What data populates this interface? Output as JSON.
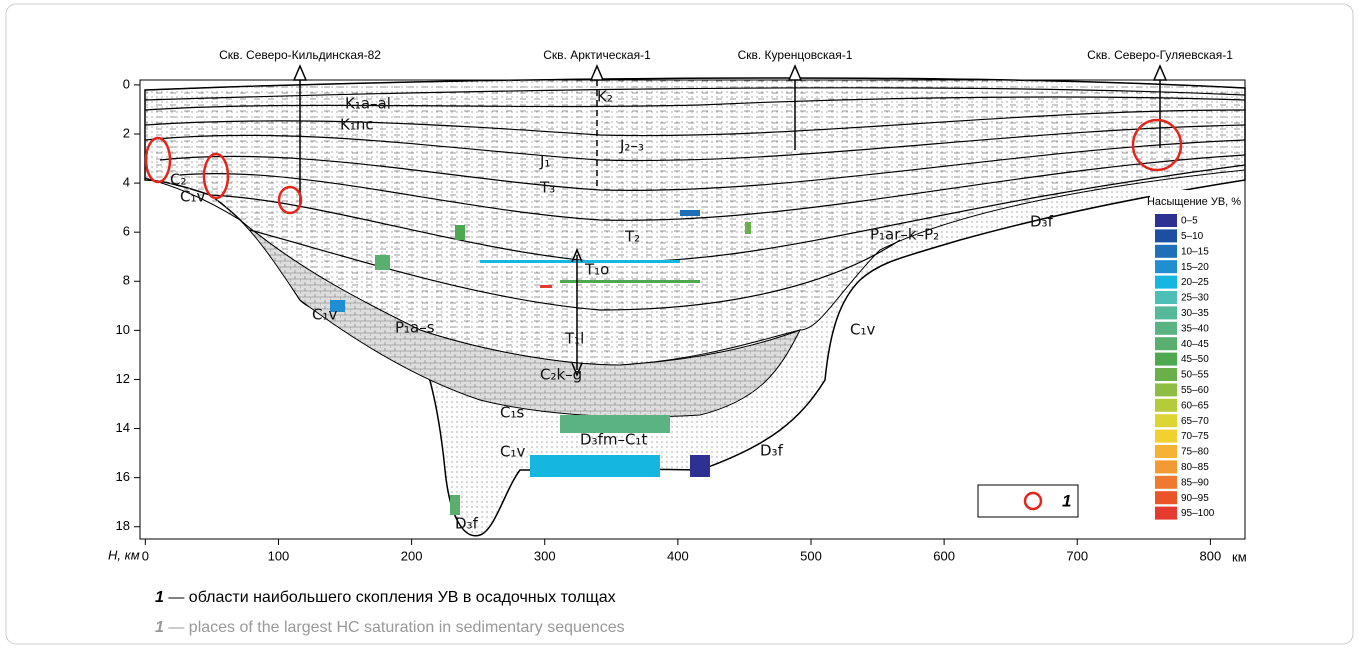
{
  "figure": {
    "wells": [
      "Скв. Северо-Кильдинская-82",
      "Скв. Арктическая-1",
      "Скв. Куренцовская-1",
      "Скв. Северо-Гуляевская-1"
    ],
    "y_axis_label": "H, км",
    "x_axis_label": "км",
    "xlim": [
      -4,
      826
    ],
    "ylim": [
      -0.2,
      18.5
    ],
    "xticks": [
      0,
      100,
      200,
      300,
      400,
      500,
      600,
      700,
      800
    ],
    "yticks": [
      0,
      2,
      4,
      6,
      8,
      10,
      12,
      14,
      16,
      18
    ],
    "formations": [
      "K₁a–al",
      "K₁nc",
      "K₂",
      "J₂–₃",
      "J₁",
      "T₃",
      "T₂",
      "T₁o",
      "T₁l",
      "P₁a–s",
      "C₂k–g",
      "C₁s",
      "C₁v",
      "D₃fm–C₁t",
      "D₃f",
      "P₁ar–k–P₂",
      "D₃f",
      "C₂",
      "C₁v",
      "C₁v",
      "C₁v",
      "D₃f"
    ],
    "legend": {
      "title": "Насыщение УВ, %",
      "items": [
        {
          "name": "0–5",
          "color": "#2e3192"
        },
        {
          "name": "5–10",
          "color": "#1c4ea1"
        },
        {
          "name": "10–15",
          "color": "#1f6fb8"
        },
        {
          "name": "15–20",
          "color": "#1f8fd2"
        },
        {
          "name": "20–25",
          "color": "#15b6e0"
        },
        {
          "name": "25–30",
          "color": "#4dbfb6"
        },
        {
          "name": "30–35",
          "color": "#55b89b"
        },
        {
          "name": "35–40",
          "color": "#5bb384"
        },
        {
          "name": "40–45",
          "color": "#5aaf6e"
        },
        {
          "name": "45–50",
          "color": "#4da84f"
        },
        {
          "name": "50–55",
          "color": "#6ab04a"
        },
        {
          "name": "55–60",
          "color": "#8dbd43"
        },
        {
          "name": "60–65",
          "color": "#b4cc3a"
        },
        {
          "name": "65–70",
          "color": "#dcd533"
        },
        {
          "name": "70–75",
          "color": "#f2d12e"
        },
        {
          "name": "75–80",
          "color": "#f5b335"
        },
        {
          "name": "80–85",
          "color": "#f39a33"
        },
        {
          "name": "85–90",
          "color": "#ef7a2f"
        },
        {
          "name": "90–95",
          "color": "#ea5428"
        },
        {
          "name": "95–100",
          "color": "#e53a30"
        }
      ]
    },
    "symbol_label": "1",
    "caption": [
      {
        "number": "1",
        "text": " — области наибольшего скопления УВ в осадочных толщах"
      },
      {
        "number": "1",
        "text": " —  places of the largest HC saturation in sedimentary sequences"
      }
    ]
  }
}
